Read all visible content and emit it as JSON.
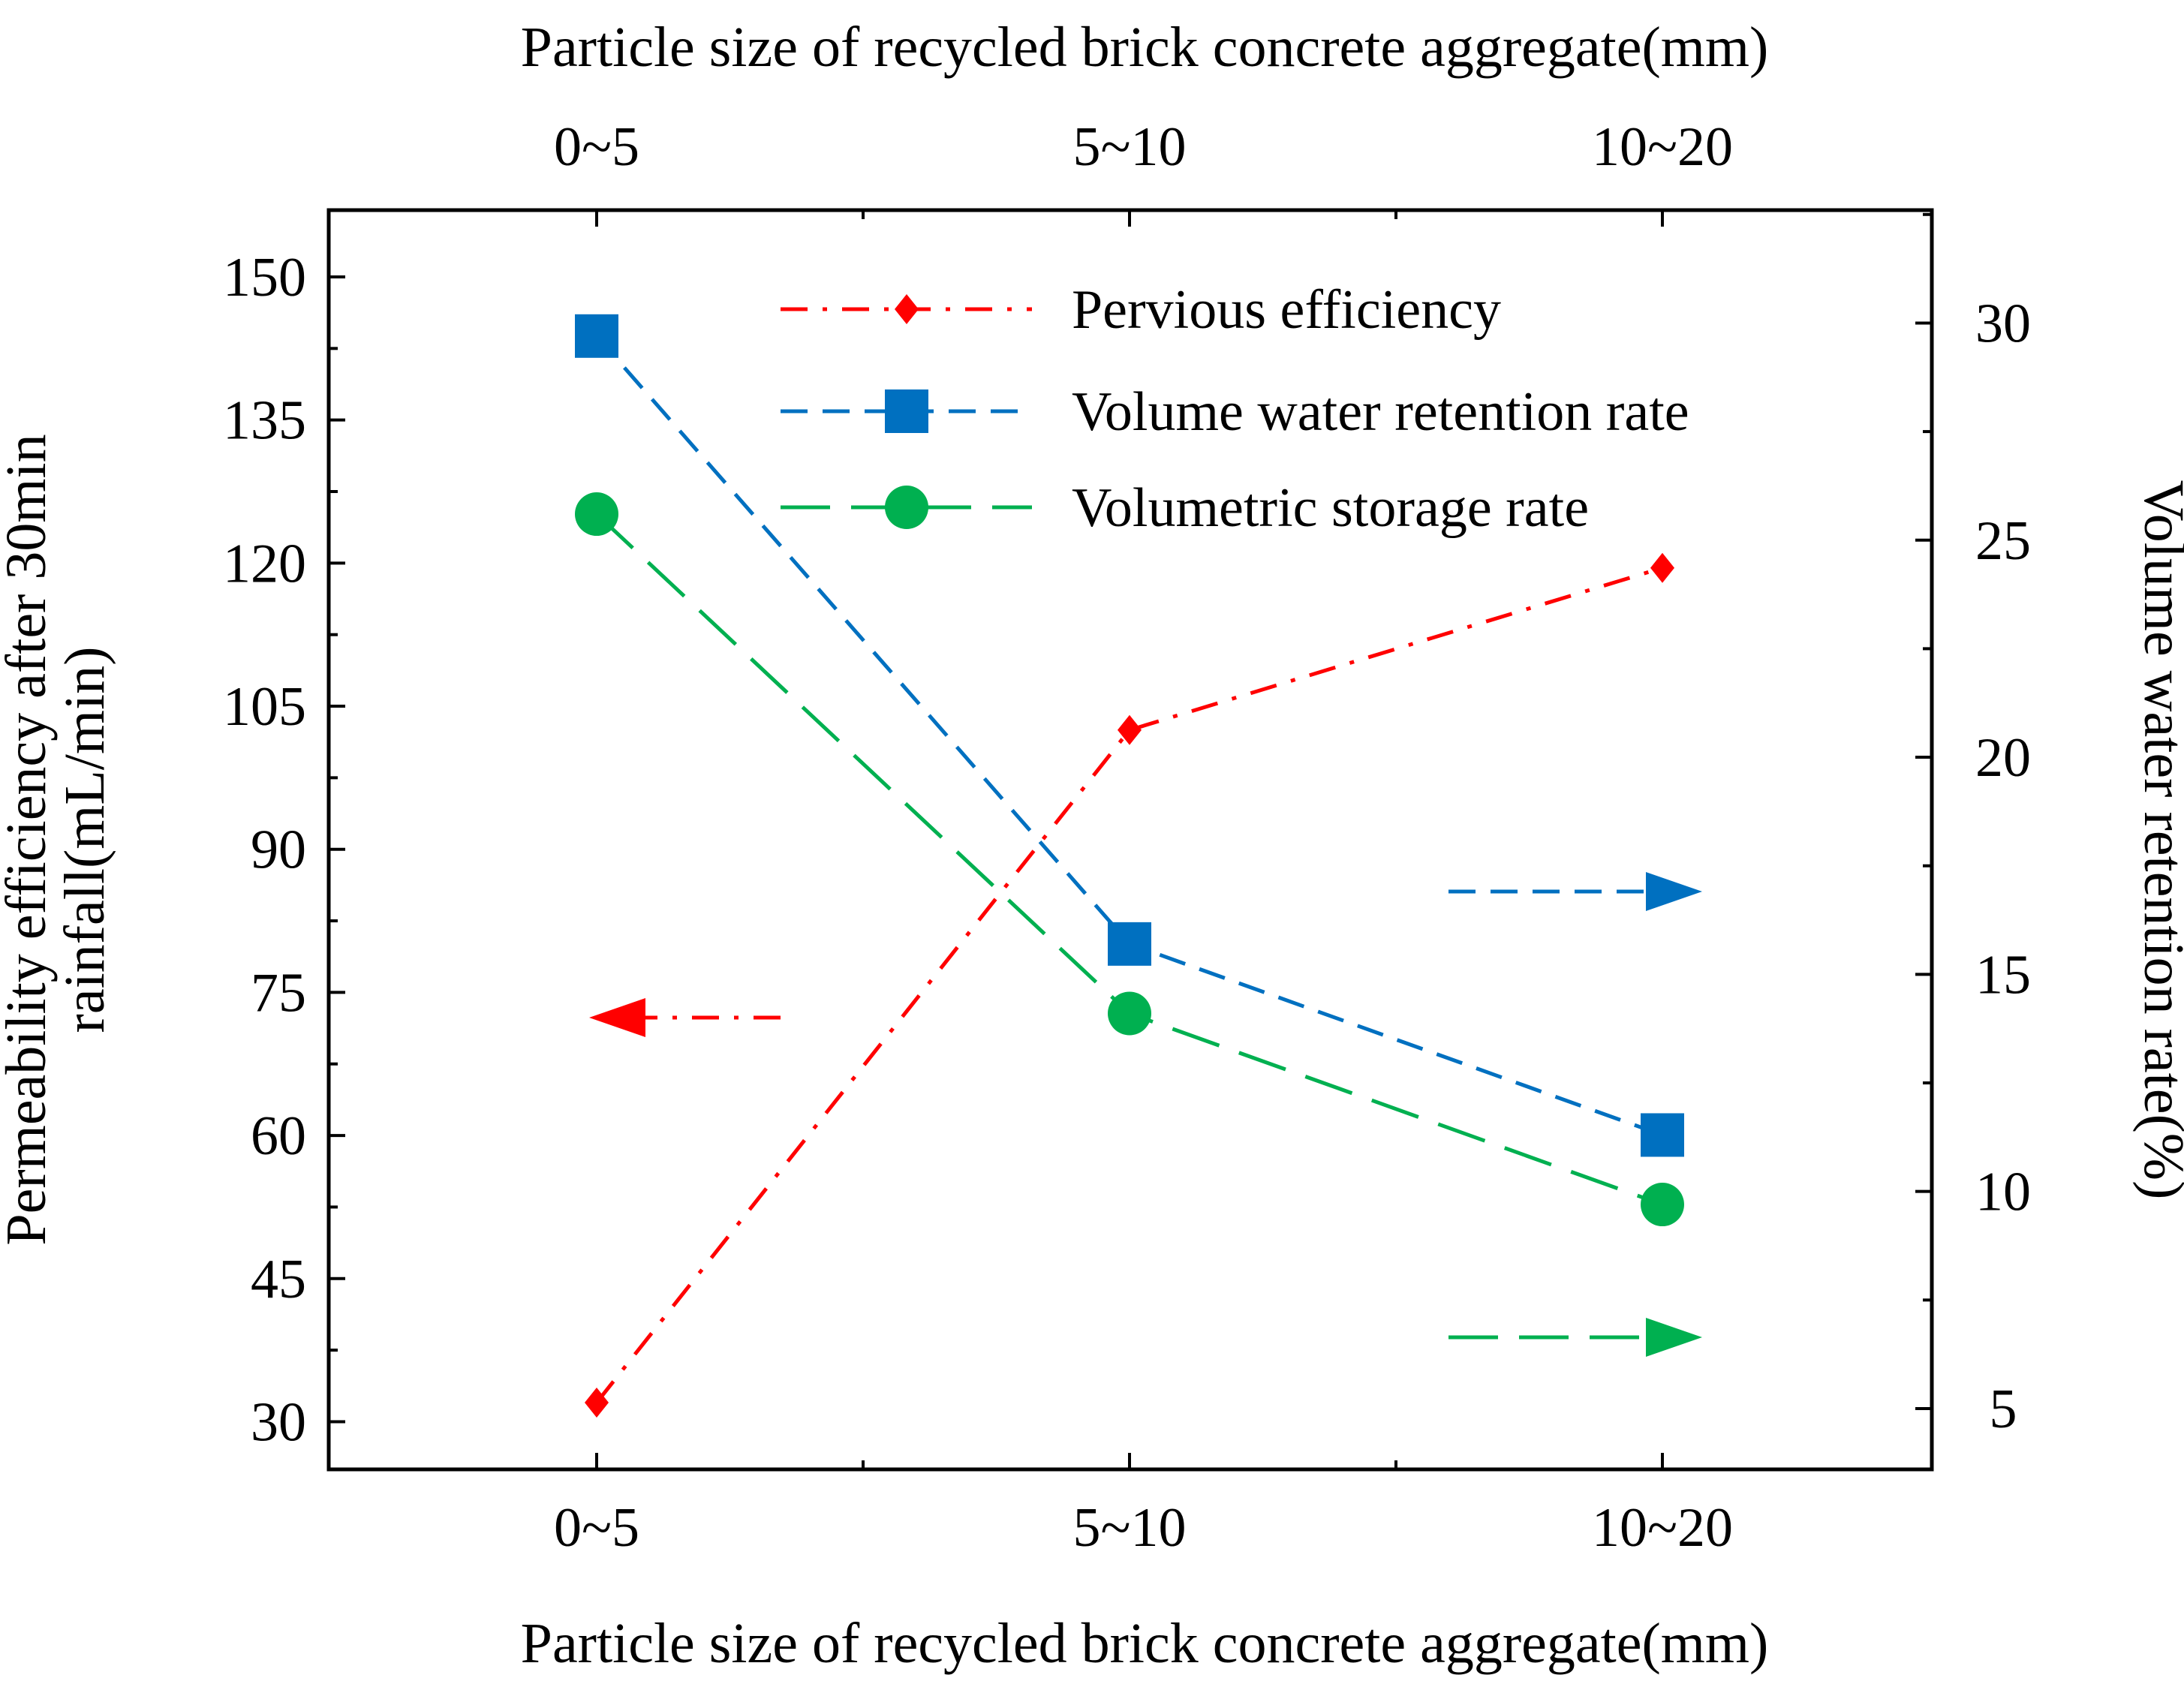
{
  "chart_data": {
    "type": "line",
    "categories": [
      "0~5",
      "5~10",
      "10~20"
    ],
    "xlabel": "Particle size of recycled brick concrete aggregate(mm)",
    "x2label": "Particle size of recycled brick concrete aggregate(mm)",
    "ylabel_lines": [
      "Permeability efficiency after 30min",
      "rainfall(mL/min)"
    ],
    "y2label": "Volume water retention rate(%)",
    "ylim": [
      25,
      157
    ],
    "y2lim": [
      3.6,
      32.6
    ],
    "yticks": [
      30,
      45,
      60,
      75,
      90,
      105,
      120,
      135,
      150
    ],
    "y2ticks": [
      5,
      10,
      15,
      20,
      25,
      30
    ],
    "series": [
      {
        "name": "Pervious efficiency",
        "axis": "left",
        "color": "#ff0000",
        "marker": "diamond",
        "dash": "dashdot",
        "values": [
          32.0,
          102.5,
          119.5
        ]
      },
      {
        "name": "Volume water retention rate",
        "axis": "right",
        "color": "#0070c0",
        "marker": "square",
        "dash": "dash",
        "values": [
          29.7,
          15.7,
          11.3
        ]
      },
      {
        "name": "Volumetric storage rate",
        "axis": "right",
        "color": "#00b050",
        "marker": "circle",
        "dash": "longdash",
        "values": [
          25.6,
          14.1,
          9.7
        ]
      }
    ],
    "axis_indicators": [
      {
        "series": "Pervious efficiency",
        "points_to": "left",
        "color": "#ff0000"
      },
      {
        "series": "Volume water retention rate",
        "points_to": "right",
        "color": "#0070c0"
      },
      {
        "series": "Volumetric storage rate",
        "points_to": "right",
        "color": "#00b050"
      }
    ],
    "legend": "top-center"
  }
}
